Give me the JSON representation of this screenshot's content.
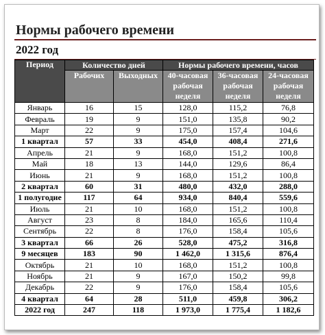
{
  "header": {
    "title": "Нормы рабочего времени",
    "subtitle": "2022 год"
  },
  "table": {
    "head": {
      "period": "Период",
      "days": "Количество дней",
      "norms": "Нормы рабочего времени, часов",
      "sub": [
        "Рабочих",
        "Выходных",
        "40-часовая рабочая неделя",
        "36-часовая рабочая неделя",
        "24-часовая рабочая неделя"
      ]
    },
    "rows": [
      {
        "cells": [
          "Январь",
          "16",
          "15",
          "128,0",
          "115,2",
          "76,8"
        ],
        "bold": false
      },
      {
        "cells": [
          "Февраль",
          "19",
          "9",
          "151,0",
          "135,8",
          "90,2"
        ],
        "bold": false
      },
      {
        "cells": [
          "Март",
          "22",
          "9",
          "175,0",
          "157,4",
          "104,6"
        ],
        "bold": false
      },
      {
        "cells": [
          "1 квартал",
          "57",
          "33",
          "454,0",
          "408,4",
          "271,6"
        ],
        "bold": true
      },
      {
        "cells": [
          "Апрель",
          "21",
          "9",
          "168,0",
          "151,2",
          "100,8"
        ],
        "bold": false
      },
      {
        "cells": [
          "Май",
          "18",
          "13",
          "144,0",
          "129,6",
          "86,4"
        ],
        "bold": false
      },
      {
        "cells": [
          "Июнь",
          "21",
          "9",
          "168,0",
          "151,2",
          "100,8"
        ],
        "bold": false
      },
      {
        "cells": [
          "2 квартал",
          "60",
          "31",
          "480,0",
          "432,0",
          "288,0"
        ],
        "bold": true
      },
      {
        "cells": [
          "1 полугодие",
          "117",
          "64",
          "934,0",
          "840,4",
          "559,6"
        ],
        "bold": true
      },
      {
        "cells": [
          "Июль",
          "21",
          "10",
          "168,0",
          "151,2",
          "100,8"
        ],
        "bold": false
      },
      {
        "cells": [
          "Август",
          "23",
          "8",
          "184,0",
          "165,6",
          "110,4"
        ],
        "bold": false
      },
      {
        "cells": [
          "Сентябрь",
          "22",
          "8",
          "176,0",
          "158,4",
          "105,6"
        ],
        "bold": false
      },
      {
        "cells": [
          "3 квартал",
          "66",
          "26",
          "528,0",
          "475,2",
          "316,8"
        ],
        "bold": true
      },
      {
        "cells": [
          "9 месяцев",
          "183",
          "90",
          "1 462,0",
          "1 315,6",
          "876,4"
        ],
        "bold": true
      },
      {
        "cells": [
          "Октябрь",
          "21",
          "10",
          "168,0",
          "151,2",
          "100,8"
        ],
        "bold": false
      },
      {
        "cells": [
          "Ноябрь",
          "21",
          "9",
          "167,0",
          "150,2",
          "99,8"
        ],
        "bold": false
      },
      {
        "cells": [
          "Декабрь",
          "22",
          "9",
          "176,0",
          "158,4",
          "105,6"
        ],
        "bold": false
      },
      {
        "cells": [
          "4 квартал",
          "64",
          "28",
          "511,0",
          "459,8",
          "306,2"
        ],
        "bold": true
      },
      {
        "cells": [
          "2022 год",
          "247",
          "118",
          "1 973,0",
          "1 775,4",
          "1 182,6"
        ],
        "bold": true
      }
    ]
  }
}
